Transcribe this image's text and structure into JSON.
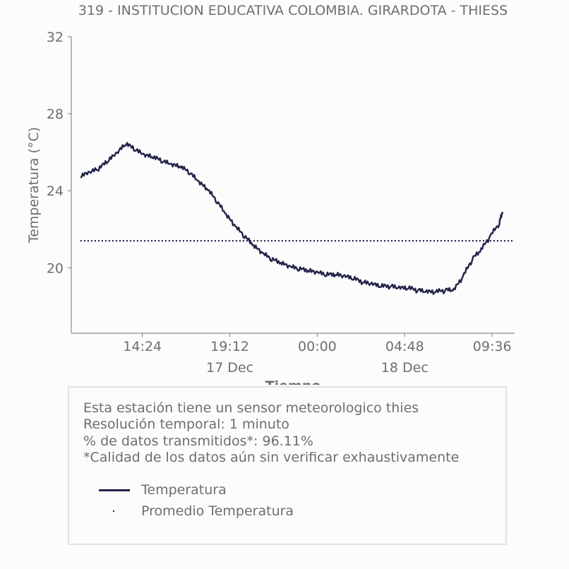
{
  "chart_data": {
    "type": "line",
    "title": "319 - INSTITUCION EDUCATIVA COLOMBIA. GIRARDOTA - THIESS",
    "xlabel": "Tiempo",
    "ylabel": "Temperatura (°C)",
    "ylim": [
      16.6,
      32
    ],
    "y_ticks": [
      "20",
      "24",
      "28",
      "32"
    ],
    "x_ticks": [
      "14:24",
      "19:12",
      "00:00",
      "04:48",
      "09:36"
    ],
    "x_date_labels": [
      "17 Dec",
      "18 Dec"
    ],
    "grid": false,
    "series": [
      {
        "name": "Temperatura",
        "color": "#23244a",
        "style": "solid",
        "x": [
          "2023-12-17 11:00",
          "2023-12-17 11:30",
          "2023-12-17 12:00",
          "2023-12-17 12:30",
          "2023-12-17 13:00",
          "2023-12-17 13:30",
          "2023-12-17 14:00",
          "2023-12-17 14:30",
          "2023-12-17 15:00",
          "2023-12-17 15:30",
          "2023-12-17 16:00",
          "2023-12-17 16:30",
          "2023-12-17 17:00",
          "2023-12-17 17:30",
          "2023-12-17 18:00",
          "2023-12-17 18:30",
          "2023-12-17 19:00",
          "2023-12-17 19:30",
          "2023-12-17 20:00",
          "2023-12-17 20:30",
          "2023-12-17 21:00",
          "2023-12-17 21:30",
          "2023-12-17 22:00",
          "2023-12-17 22:30",
          "2023-12-17 23:00",
          "2023-12-17 23:30",
          "2023-12-18 00:00",
          "2023-12-18 00:30",
          "2023-12-18 01:00",
          "2023-12-18 01:30",
          "2023-12-18 02:00",
          "2023-12-18 02:30",
          "2023-12-18 03:00",
          "2023-12-18 03:30",
          "2023-12-18 04:00",
          "2023-12-18 04:30",
          "2023-12-18 05:00",
          "2023-12-18 05:30",
          "2023-12-18 06:00",
          "2023-12-18 06:30",
          "2023-12-18 07:00",
          "2023-12-18 07:30",
          "2023-12-18 08:00",
          "2023-12-18 08:30",
          "2023-12-18 09:00",
          "2023-12-18 09:30",
          "2023-12-18 10:00",
          "2023-12-18 10:10"
        ],
        "values": [
          24.7,
          24.9,
          25.1,
          25.5,
          25.9,
          26.4,
          26.1,
          25.8,
          25.7,
          25.5,
          25.3,
          25.2,
          24.9,
          24.4,
          24.0,
          23.4,
          22.7,
          22.1,
          21.6,
          21.1,
          20.7,
          20.4,
          20.2,
          20.0,
          19.9,
          19.8,
          19.7,
          19.6,
          19.6,
          19.5,
          19.4,
          19.2,
          19.1,
          19.0,
          19.0,
          18.9,
          18.9,
          18.8,
          18.7,
          18.7,
          18.8,
          18.8,
          19.5,
          20.4,
          20.9,
          21.6,
          22.3,
          22.9
        ]
      },
      {
        "name": "Promedio Temperatura",
        "color": "#23244a",
        "style": "dotted",
        "x": [
          "2023-12-17 11:00",
          "2023-12-18 10:10"
        ],
        "values": [
          21.4,
          21.4
        ]
      }
    ]
  },
  "info_box": {
    "lines": [
      "Esta estación tiene un sensor meteorologico thies",
      "Resolución temporal: 1 minuto",
      "% de datos transmitidos*: 96.11%",
      "*Calidad de los datos aún sin verificar exhaustivamente"
    ],
    "legend": [
      {
        "label": "Temperatura",
        "kind": "line"
      },
      {
        "label": "Promedio Temperatura",
        "kind": "dot"
      }
    ]
  }
}
